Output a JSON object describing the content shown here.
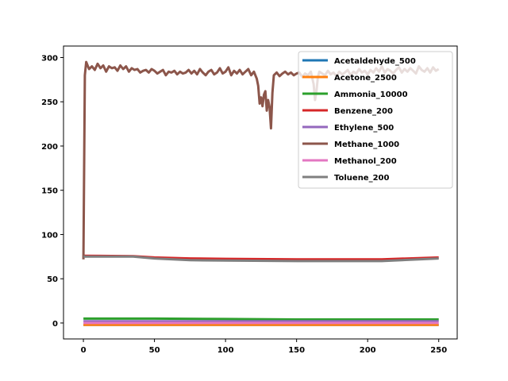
{
  "chart_data": {
    "type": "line",
    "title": "",
    "xlabel": "",
    "ylabel": "",
    "xlim": [
      -14,
      263
    ],
    "ylim": [
      -18,
      313
    ],
    "xticks": [
      0,
      50,
      100,
      150,
      200,
      250
    ],
    "yticks": [
      0,
      50,
      100,
      150,
      200,
      250,
      300
    ],
    "grid": false,
    "legend_position": "top-right",
    "series": [
      {
        "name": "Acetaldehyde_500",
        "color": "#1f77b4",
        "x": [
          0,
          250
        ],
        "y": [
          -2,
          -2
        ]
      },
      {
        "name": "Acetone_2500",
        "color": "#ff7f0e",
        "x": [
          0,
          250
        ],
        "y": [
          -2,
          -2
        ]
      },
      {
        "name": "Ammonia_10000",
        "color": "#2ca02c",
        "x": [
          0,
          50,
          100,
          150,
          200,
          250
        ],
        "y": [
          5,
          5,
          4.5,
          4,
          4,
          4
        ]
      },
      {
        "name": "Benzene_200",
        "color": "#d62728",
        "x": [
          0,
          35,
          50,
          75,
          100,
          150,
          210,
          250
        ],
        "y": [
          76,
          75.5,
          74,
          73,
          72.5,
          72,
          72,
          74
        ]
      },
      {
        "name": "Ethylene_500",
        "color": "#9467bd",
        "x": [
          0,
          250
        ],
        "y": [
          2,
          2
        ]
      },
      {
        "name": "Methane_1000",
        "color": "#8c564b",
        "x": [
          0,
          1,
          2,
          4,
          6,
          8,
          10,
          12,
          14,
          16,
          18,
          20,
          22,
          24,
          26,
          28,
          30,
          32,
          34,
          36,
          38,
          40,
          42,
          44,
          46,
          48,
          50,
          52,
          54,
          56,
          58,
          60,
          62,
          64,
          66,
          68,
          70,
          72,
          74,
          76,
          78,
          80,
          82,
          84,
          86,
          88,
          90,
          92,
          94,
          96,
          98,
          100,
          102,
          104,
          106,
          108,
          110,
          112,
          114,
          116,
          118,
          120,
          122,
          123,
          124,
          125,
          126,
          127,
          128,
          129,
          130,
          131,
          132,
          133,
          134,
          136,
          138,
          140,
          142,
          144,
          146,
          148,
          150,
          152,
          154,
          156,
          158,
          160,
          162,
          163,
          164,
          165,
          166,
          168,
          170,
          172,
          174,
          176,
          178,
          180,
          182,
          184,
          186,
          188,
          190,
          192,
          194,
          196,
          198,
          200,
          202,
          204,
          206,
          208,
          210,
          212,
          214,
          216,
          218,
          220,
          222,
          224,
          226,
          228,
          230,
          232,
          234,
          236,
          238,
          240,
          242,
          244,
          246,
          248,
          250
        ],
        "y": [
          72,
          280,
          295,
          287,
          290,
          286,
          293,
          288,
          291,
          284,
          290,
          288,
          289,
          285,
          291,
          287,
          290,
          284,
          288,
          286,
          287,
          283,
          285,
          286,
          283,
          287,
          285,
          282,
          284,
          286,
          280,
          284,
          283,
          285,
          281,
          284,
          282,
          283,
          286,
          282,
          285,
          281,
          287,
          283,
          280,
          284,
          286,
          281,
          283,
          288,
          282,
          284,
          289,
          280,
          285,
          282,
          286,
          281,
          284,
          287,
          280,
          284,
          276,
          268,
          248,
          255,
          245,
          258,
          262,
          240,
          252,
          244,
          220,
          260,
          280,
          283,
          279,
          282,
          284,
          281,
          283,
          280,
          282,
          283,
          278,
          282,
          280,
          284,
          270,
          252,
          262,
          278,
          284,
          282,
          280,
          285,
          281,
          283,
          279,
          284,
          281,
          283,
          286,
          280,
          284,
          282,
          287,
          283,
          285,
          281,
          286,
          283,
          288,
          284,
          290,
          283,
          287,
          285,
          282,
          286,
          289,
          283,
          287,
          284,
          288,
          285,
          282,
          290,
          286,
          284,
          288,
          283,
          289,
          285,
          287
        ]
      },
      {
        "name": "Methanol_200",
        "color": "#e377c2",
        "x": [
          0,
          250
        ],
        "y": [
          0,
          0
        ]
      },
      {
        "name": "Toluene_200",
        "color": "#7f7f7f",
        "x": [
          0,
          35,
          50,
          75,
          100,
          150,
          210,
          250
        ],
        "y": [
          75,
          75,
          73,
          71,
          70.5,
          70,
          70,
          73
        ]
      }
    ]
  }
}
